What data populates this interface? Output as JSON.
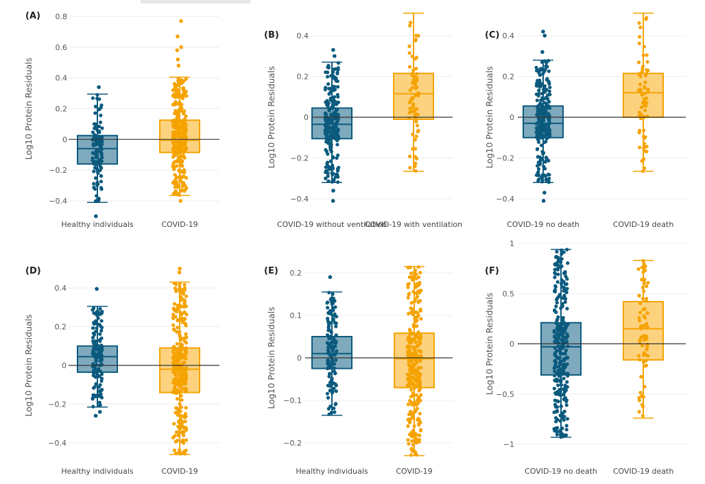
{
  "colors": {
    "group1_line": "#0b5a7e",
    "group1_fill": "#7faabd",
    "group2_line": "#f5a300",
    "group2_fill": "#fdd27f",
    "grid": "#ececec",
    "zero_line": "#333333"
  },
  "chart_data": [
    {
      "type": "box",
      "panel": "(A)",
      "ylabel": "Log10 Protein Residuals",
      "yticks": [
        "0.8",
        "0.6",
        "0.4",
        "0.2",
        "0",
        "−0.2",
        "−0.4"
      ],
      "ytick_values": [
        0.8,
        0.6,
        0.4,
        0.2,
        0,
        -0.2,
        -0.4
      ],
      "ylim": [
        -0.5,
        0.82
      ],
      "categories": [
        "Healthy individuals",
        "COVID-19"
      ],
      "boxes": [
        {
          "whisker_low": -0.41,
          "q1": -0.16,
          "median": -0.06,
          "q3": 0.025,
          "whisker_high": 0.295,
          "outliers": [
            0.34,
            -0.5
          ]
        },
        {
          "whisker_low": -0.365,
          "q1": -0.085,
          "median": -0.005,
          "q3": 0.125,
          "whisker_high": 0.405,
          "outliers": [
            0.48,
            0.52,
            0.58,
            0.6,
            0.67,
            0.77,
            -0.4
          ]
        }
      ]
    },
    {
      "type": "box",
      "panel": "(B)",
      "ylabel": "Log10 Protein Residuals",
      "yticks": [
        "0.4",
        "0.2",
        "0",
        "−0.2",
        "−0.4"
      ],
      "ytick_values": [
        0.4,
        0.2,
        0,
        -0.2,
        -0.4
      ],
      "ylim": [
        -0.42,
        0.52
      ],
      "categories": [
        "COVID-19 without ventilation",
        "COVID-19 with ventilation"
      ],
      "boxes": [
        {
          "whisker_low": -0.32,
          "q1": -0.105,
          "median": -0.035,
          "q3": 0.045,
          "whisker_high": 0.27,
          "outliers": [
            0.33,
            0.3,
            -0.36,
            -0.41
          ]
        },
        {
          "whisker_low": -0.265,
          "q1": -0.01,
          "median": 0.115,
          "q3": 0.215,
          "whisker_high": 0.51,
          "outliers": []
        }
      ]
    },
    {
      "type": "box",
      "panel": "(C)",
      "ylabel": "Log10 Protein Residuals",
      "yticks": [
        "0.4",
        "0.2",
        "0",
        "−0.2",
        "−0.4"
      ],
      "ytick_values": [
        0.4,
        0.2,
        0,
        -0.2,
        -0.4
      ],
      "ylim": [
        -0.42,
        0.52
      ],
      "categories": [
        "COVID-19 no death",
        "COVID-19 death"
      ],
      "boxes": [
        {
          "whisker_low": -0.32,
          "q1": -0.1,
          "median": -0.03,
          "q3": 0.055,
          "whisker_high": 0.28,
          "outliers": [
            0.42,
            0.4,
            0.32,
            -0.37,
            -0.41
          ]
        },
        {
          "whisker_low": -0.265,
          "q1": 0.0,
          "median": 0.12,
          "q3": 0.215,
          "whisker_high": 0.51,
          "outliers": []
        }
      ]
    },
    {
      "type": "box",
      "panel": "(D)",
      "ylabel": "Log10 Protein Residuals",
      "yticks": [
        "0.4",
        "0.2",
        "0",
        "−0.2",
        "−0.4"
      ],
      "ytick_values": [
        0.4,
        0.2,
        0,
        -0.2,
        -0.4
      ],
      "ylim": [
        -0.48,
        0.52
      ],
      "categories": [
        "Healthy individuals",
        "COVID-19"
      ],
      "boxes": [
        {
          "whisker_low": -0.215,
          "q1": -0.035,
          "median": 0.045,
          "q3": 0.1,
          "whisker_high": 0.305,
          "outliers": [
            0.395,
            -0.24,
            -0.26
          ]
        },
        {
          "whisker_low": -0.46,
          "q1": -0.14,
          "median": -0.02,
          "q3": 0.09,
          "whisker_high": 0.43,
          "outliers": [
            0.5,
            0.48
          ]
        }
      ]
    },
    {
      "type": "box",
      "panel": "(E)",
      "ylabel": "Log10 Protein Residuals",
      "yticks": [
        "0.2",
        "0.1",
        "0",
        "−0.1",
        "−0.2"
      ],
      "ytick_values": [
        0.2,
        0.1,
        0,
        -0.1,
        -0.2
      ],
      "ylim": [
        -0.235,
        0.22
      ],
      "categories": [
        "Healthy individuals",
        "COVID-19"
      ],
      "boxes": [
        {
          "whisker_low": -0.135,
          "q1": -0.025,
          "median": 0.01,
          "q3": 0.05,
          "whisker_high": 0.155,
          "outliers": [
            0.19
          ]
        },
        {
          "whisker_low": -0.23,
          "q1": -0.07,
          "median": -0.002,
          "q3": 0.058,
          "whisker_high": 0.215,
          "outliers": []
        }
      ]
    },
    {
      "type": "box",
      "panel": "(F)",
      "ylabel": "Log10 Protein Residuals",
      "yticks": [
        "1",
        "0.5",
        "0",
        "−0.5",
        "−1"
      ],
      "ytick_values": [
        1,
        0.5,
        0,
        -0.5,
        -1
      ],
      "ylim": [
        -1.0,
        0.95
      ],
      "categories": [
        "COVID-19 no death",
        "COVID-19 death"
      ],
      "boxes": [
        {
          "whisker_low": -0.93,
          "q1": -0.31,
          "median": -0.03,
          "q3": 0.21,
          "whisker_high": 0.94,
          "outliers": []
        },
        {
          "whisker_low": -0.74,
          "q1": -0.16,
          "median": 0.15,
          "q3": 0.42,
          "whisker_high": 0.83,
          "outliers": []
        }
      ]
    }
  ]
}
